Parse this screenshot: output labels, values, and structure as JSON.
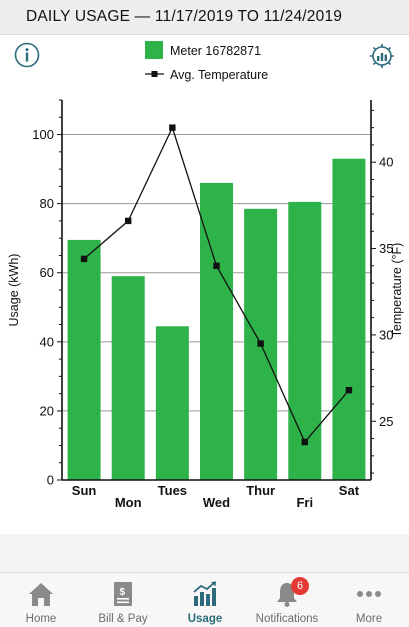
{
  "header": {
    "title": "DAILY USAGE — 11/17/2019 TO 11/24/2019"
  },
  "legend": {
    "bar_label": "Meter 16782871",
    "line_label": "Avg. Temperature"
  },
  "colors": {
    "bar": "#2db34a",
    "header_bg": "#eeeeee",
    "accent": "#2b6b7a",
    "badge": "#e53935"
  },
  "chart_data": {
    "type": "bar",
    "categories": [
      "Sun",
      "Mon",
      "Tues",
      "Wed",
      "Thur",
      "Fri",
      "Sat"
    ],
    "series": [
      {
        "name": "Meter 16782871",
        "axis": "left",
        "type": "bar",
        "values": [
          69.5,
          59,
          44.5,
          86,
          78.5,
          80.5,
          93
        ]
      },
      {
        "name": "Avg. Temperature",
        "axis": "right",
        "type": "line",
        "values": [
          34.4,
          36.6,
          42,
          34,
          29.5,
          23.8,
          26.8
        ]
      }
    ],
    "ylabel": "Usage (kWh)",
    "y2label": "Temperature (°F)",
    "ylim": [
      0,
      110
    ],
    "y2lim": [
      21.6,
      43.6
    ],
    "yticks": [
      0,
      20,
      40,
      60,
      80,
      100
    ],
    "y2ticks": [
      25,
      30,
      35,
      40
    ],
    "grid": true
  },
  "tabs": [
    {
      "label": "Home",
      "icon": "home-icon",
      "active": false
    },
    {
      "label": "Bill & Pay",
      "icon": "bill-icon",
      "active": false
    },
    {
      "label": "Usage",
      "icon": "usage-chart-icon",
      "active": true
    },
    {
      "label": "Notifications",
      "icon": "bell-icon",
      "active": false,
      "badge": "6"
    },
    {
      "label": "More",
      "icon": "more-dots-icon",
      "active": false
    }
  ]
}
